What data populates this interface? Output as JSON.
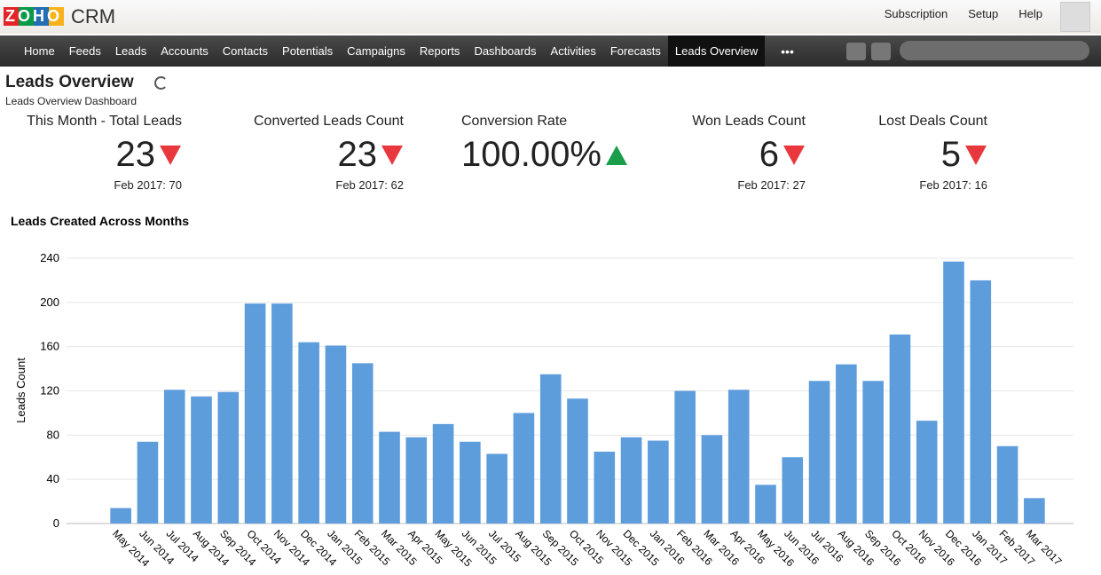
{
  "header": {
    "logo": "ZOHO",
    "product": "CRM",
    "links": [
      "Subscription",
      "Setup",
      "Help"
    ]
  },
  "nav": {
    "items": [
      "Home",
      "Feeds",
      "Leads",
      "Accounts",
      "Contacts",
      "Potentials",
      "Campaigns",
      "Reports",
      "Dashboards",
      "Activities",
      "Forecasts",
      "Leads Overview"
    ],
    "active": 11
  },
  "page": {
    "title": "Leads Overview",
    "subtitle": "Leads Overview Dashboard"
  },
  "kpis": [
    {
      "label": "This Month - Total Leads",
      "value": "23",
      "trend": "down",
      "compare": "Feb 2017: 70"
    },
    {
      "label": "Converted Leads Count",
      "value": "23",
      "trend": "down",
      "compare": "Feb 2017: 62"
    },
    {
      "label": "Conversion Rate",
      "value": "100.00%",
      "trend": "up"
    },
    {
      "label": "Won Leads Count",
      "value": "6",
      "trend": "down",
      "compare": "Feb 2017: 27"
    },
    {
      "label": "Lost Deals Count",
      "value": "5",
      "trend": "down",
      "compare": "Feb 2017: 16"
    }
  ],
  "chart_data": {
    "type": "bar",
    "title": "Leads Created Across Months",
    "y_label": "Leads Count",
    "categories": [
      "May 2014",
      "Jun 2014",
      "Jul 2014",
      "Aug 2014",
      "Sep 2014",
      "Oct 2014",
      "Nov 2014",
      "Dec 2014",
      "Jan 2015",
      "Feb 2015",
      "Mar 2015",
      "Apr 2015",
      "May 2015",
      "Jun 2015",
      "Jul 2015",
      "Aug 2015",
      "Sep 2015",
      "Oct 2015",
      "Nov 2015",
      "Dec 2015",
      "Jan 2016",
      "Feb 2016",
      "Mar 2016",
      "Apr 2016",
      "May 2016",
      "Jun 2016",
      "Jul 2016",
      "Aug 2016",
      "Sep 2016",
      "Oct 2016",
      "Nov 2016",
      "Dec 2016",
      "Jan 2017",
      "Feb 2017",
      "Mar 2017"
    ],
    "values": [
      14,
      74,
      121,
      115,
      119,
      199,
      199,
      164,
      161,
      145,
      83,
      78,
      90,
      74,
      63,
      100,
      135,
      113,
      65,
      78,
      75,
      120,
      80,
      121,
      35,
      60,
      129,
      144,
      129,
      171,
      93,
      237,
      220,
      70,
      23
    ],
    "color": "#5e9ddc",
    "ylim": [
      0,
      240
    ],
    "yticks": [
      0,
      40,
      80,
      120,
      160,
      200,
      240
    ],
    "grid": true
  }
}
